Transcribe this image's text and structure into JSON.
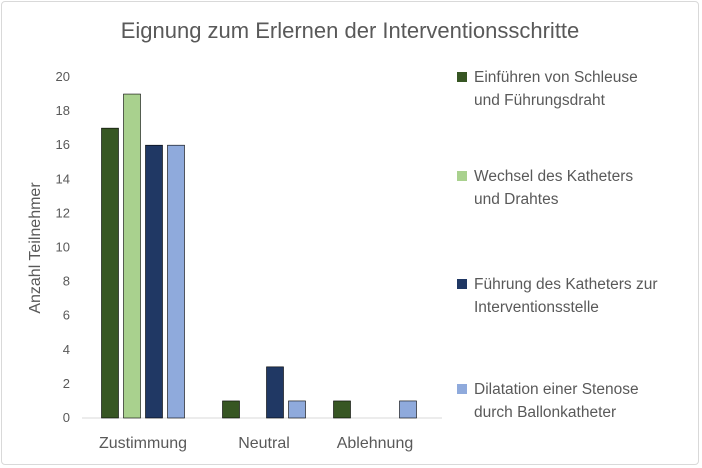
{
  "chart_data": {
    "type": "bar",
    "title": "Eignung zum Erlernen der Interventionsschritte",
    "xlabel": "",
    "ylabel": "Anzahl Teilnehmer",
    "ylim": [
      0,
      20
    ],
    "yticks": [
      0,
      2,
      4,
      6,
      8,
      10,
      12,
      14,
      16,
      18,
      20
    ],
    "grid": false,
    "legend_position": "right",
    "categories": [
      "Zustimmung",
      "Neutral",
      "Ablehnung"
    ],
    "series": [
      {
        "name": "Einführen von Schleuse und Führungsdraht",
        "color": "#375623",
        "values": [
          17,
          1,
          1
        ]
      },
      {
        "name": "Wechsel des Katheters und Drahtes",
        "color": "#a9d18e",
        "values": [
          19,
          0,
          0
        ]
      },
      {
        "name": "Führung des Katheters zur Interventionsstelle",
        "color": "#203864",
        "values": [
          16,
          3,
          0
        ]
      },
      {
        "name": "Dilatation einer Stenose durch Ballonkatheter",
        "color": "#8faadc",
        "values": [
          16,
          1,
          1
        ]
      }
    ],
    "legend_lines": [
      [
        "Einführen von Schleuse",
        "und Führungsdraht"
      ],
      [
        "Wechsel des Katheters",
        "und Drahtes"
      ],
      [
        "Führung des Katheters zur",
        "Interventionsstelle"
      ],
      [
        "Dilatation einer Stenose",
        "durch Ballonkatheter"
      ]
    ]
  }
}
